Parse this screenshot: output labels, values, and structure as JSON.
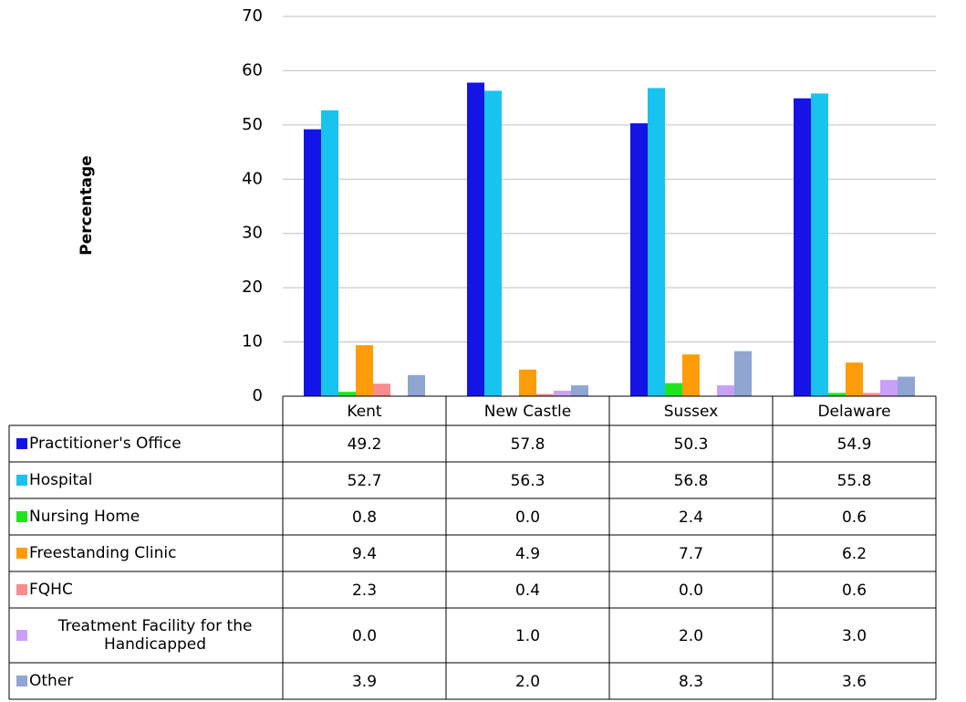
{
  "chart_data": {
    "type": "bar",
    "y_label": "Percentage",
    "categories": [
      "Kent",
      "New Castle",
      "Sussex",
      "Delaware"
    ],
    "series": [
      {
        "name": "Practitioner's Office",
        "color": "#1414e6",
        "values": [
          49.2,
          57.8,
          50.3,
          54.9
        ],
        "value_labels": [
          "49.2",
          "57.8",
          "50.3",
          "54.9"
        ]
      },
      {
        "name": "Hospital",
        "color": "#19c3f0",
        "values": [
          52.7,
          56.3,
          56.8,
          55.8
        ],
        "value_labels": [
          "52.7",
          "56.3",
          "56.8",
          "55.8"
        ]
      },
      {
        "name": "Nursing Home",
        "color": "#1ee61e",
        "values": [
          0.8,
          0.0,
          2.4,
          0.6
        ],
        "value_labels": [
          "0.8",
          "0.0",
          "2.4",
          "0.6"
        ]
      },
      {
        "name": "Freestanding Clinic",
        "color": "#ff9c0a",
        "values": [
          9.4,
          4.9,
          7.7,
          6.2
        ],
        "value_labels": [
          "9.4",
          "4.9",
          "7.7",
          "6.2"
        ]
      },
      {
        "name": "FQHC",
        "color": "#f98c8c",
        "values": [
          2.3,
          0.4,
          0.0,
          0.6
        ],
        "value_labels": [
          "2.3",
          "0.4",
          "0.0",
          "0.6"
        ]
      },
      {
        "name": "Treatment Facility for the Handicapped",
        "color": "#c9a0f5",
        "values": [
          0.0,
          1.0,
          2.0,
          3.0
        ],
        "value_labels": [
          "0.0",
          "1.0",
          "2.0",
          "3.0"
        ]
      },
      {
        "name": "Other",
        "color": "#8fa5d2",
        "values": [
          3.9,
          2.0,
          8.3,
          3.6
        ],
        "value_labels": [
          "3.9",
          "2.0",
          "8.3",
          "3.6"
        ]
      }
    ],
    "ylim": [
      0,
      70
    ],
    "yticks": [
      0,
      10,
      20,
      30,
      40,
      50,
      60,
      70
    ],
    "grid": true
  }
}
